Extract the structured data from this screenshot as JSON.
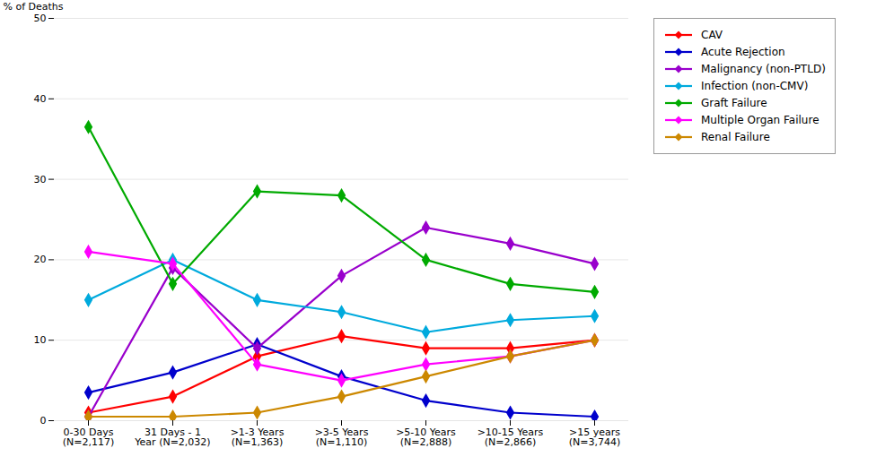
{
  "chart_data": {
    "type": "line",
    "categories": [
      "0-30 Days\n(N=2,117)",
      "31 Days - 1\nYear (N=2,032)",
      ">1-3 Years\n(N=1,363)",
      ">3-5 Years\n(N=1,110)",
      ">5-10 Years\n(N=2,888)",
      ">10-15 Years\n(N=2,866)",
      ">15 years\n(N=3,744)"
    ],
    "series": [
      {
        "name": "CAV",
        "color": "#FF0000",
        "marker": "diamond",
        "values": [
          1,
          3,
          8,
          10.5,
          9,
          9,
          10
        ]
      },
      {
        "name": "Acute Rejection",
        "color": "#0000CC",
        "marker": "diamond",
        "values": [
          3.5,
          6,
          9.5,
          5.5,
          2.5,
          1,
          0.5
        ]
      },
      {
        "name": "Malignancy (non-PTLD)",
        "color": "#9900CC",
        "marker": "diamond",
        "values": [
          0.5,
          19,
          9,
          18,
          24,
          22,
          19.5
        ]
      },
      {
        "name": "Infection (non-CMV)",
        "color": "#00AADD",
        "marker": "diamond",
        "values": [
          15,
          20,
          15,
          13.5,
          11,
          12.5,
          13
        ]
      },
      {
        "name": "Graft Failure",
        "color": "#00AA00",
        "marker": "diamond",
        "values": [
          36.5,
          17,
          28.5,
          28,
          20,
          17,
          16
        ]
      },
      {
        "name": "Multiple Organ Failure",
        "color": "#FF00FF",
        "marker": "diamond",
        "values": [
          21,
          19.5,
          7,
          5,
          7,
          8,
          10
        ]
      },
      {
        "name": "Renal Failure",
        "color": "#CC8800",
        "marker": "diamond",
        "values": [
          0.5,
          0.5,
          1,
          3,
          5.5,
          8,
          10
        ]
      }
    ],
    "ylabel": "% of Deaths",
    "ylim": [
      0,
      50
    ],
    "yticks": [
      0,
      10,
      20,
      30,
      40,
      50
    ],
    "grid": true,
    "legend": "upper right"
  }
}
